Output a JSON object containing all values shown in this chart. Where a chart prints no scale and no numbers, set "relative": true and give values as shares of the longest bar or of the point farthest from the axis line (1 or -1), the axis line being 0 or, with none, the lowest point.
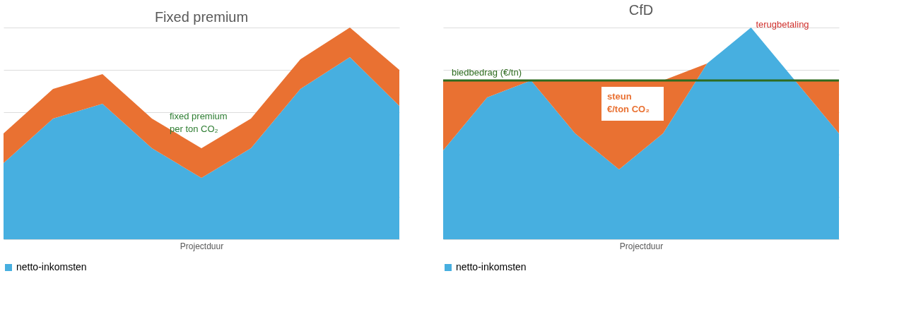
{
  "chart_data": [
    {
      "type": "area",
      "title": "Fixed premium",
      "xlabel": "Projectduur",
      "relative": true,
      "stacked": true,
      "grid": "y",
      "legend": "bottom",
      "tick_labels": false,
      "categories": [
        null,
        null,
        null,
        null,
        null,
        null,
        null,
        null,
        null
      ],
      "series": [
        {
          "name": "netto-inkomsten",
          "color": "#47afe0",
          "values": [
            0.36,
            0.57,
            0.64,
            0.43,
            0.29,
            0.43,
            0.71,
            0.86,
            0.63
          ]
        },
        {
          "color": "#e97132",
          "values": [
            0.14,
            0.14,
            0.14,
            0.14,
            0.14,
            0.14,
            0.14,
            0.14,
            0.17
          ]
        }
      ],
      "annotations": [
        "fixed premium\nper ton CO₂"
      ]
    },
    {
      "type": "area",
      "title": "CfD",
      "xlabel": "Projectduur",
      "relative": true,
      "stacked": true,
      "grid": "y",
      "legend": "bottom",
      "tick_labels": false,
      "categories": [
        null,
        null,
        null,
        null,
        null,
        null,
        null,
        null,
        null,
        null
      ],
      "series": [
        {
          "name": "netto-inkomsten",
          "color": "#47afe0",
          "values": [
            0.42,
            0.67,
            0.75,
            0.5,
            0.33,
            0.5,
            0.83,
            1,
            0.75,
            0.5
          ]
        },
        {
          "color": "#e97132",
          "values": [
            0.33,
            0.08,
            0,
            0.25,
            0.42,
            0.25,
            0,
            0,
            0,
            0.25
          ]
        }
      ],
      "ref_lines": [
        {
          "axis": "y",
          "value": 0.75,
          "label": "biedbedrag (€/tn)",
          "color": "#2e6b1f",
          "line_style": "solid"
        }
      ],
      "annotations": [
        "terugbetaling",
        "steun\n€/ton CO₂"
      ]
    }
  ]
}
